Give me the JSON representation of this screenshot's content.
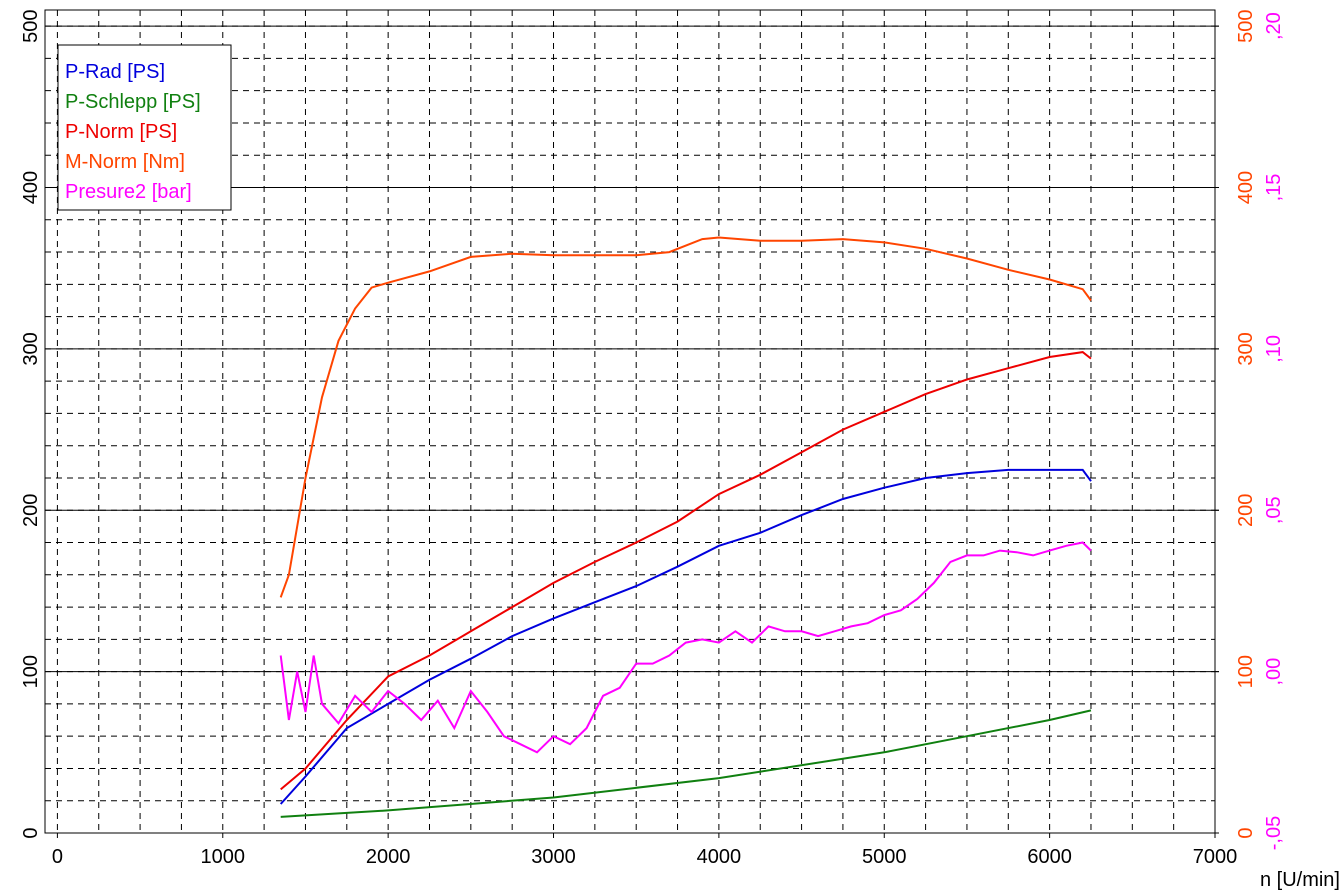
{
  "chart_data": {
    "type": "line",
    "xlabel": "n [U/min]",
    "xlim": [
      -75,
      7000
    ],
    "xticks": [
      0,
      1000,
      2000,
      3000,
      4000,
      5000,
      6000,
      7000
    ],
    "x_minor_step": 250,
    "ylim": [
      0,
      510
    ],
    "yticks": [
      0,
      100,
      200,
      300,
      400,
      500
    ],
    "y_minor_step": 20,
    "y2lim": [
      0,
      510
    ],
    "y2ticks": [
      0,
      100,
      200,
      300,
      400,
      500
    ],
    "y2color": "#ff4500",
    "y3lim": [
      -0.05,
      0.205
    ],
    "y3ticks": [
      {
        "value": -0.05,
        "label": "-,05"
      },
      {
        "value": 0,
        "label": ",00"
      },
      {
        "value": 0.05,
        "label": ",05"
      },
      {
        "value": 0.1,
        "label": ",10"
      },
      {
        "value": 0.15,
        "label": ",15"
      },
      {
        "value": 0.2,
        "label": ",20"
      }
    ],
    "y3color": "#ff00ff",
    "grid": true,
    "legend": "upper left",
    "series": [
      {
        "name": "P-Rad [PS]",
        "color": "#0000dd",
        "x": [
          1350,
          1500,
          1750,
          2000,
          2250,
          2500,
          2750,
          3000,
          3250,
          3500,
          3750,
          4000,
          4250,
          4500,
          4750,
          5000,
          5250,
          5500,
          5750,
          6000,
          6200,
          6250
        ],
        "values": [
          18,
          35,
          65,
          80,
          95,
          108,
          122,
          133,
          143,
          153,
          165,
          178,
          186,
          197,
          207,
          214,
          220,
          223,
          225,
          225,
          225,
          218
        ]
      },
      {
        "name": "P-Schlepp [PS]",
        "color": "#108010",
        "x": [
          1350,
          2000,
          3000,
          4000,
          5000,
          5500,
          6000,
          6250
        ],
        "values": [
          10,
          14,
          22,
          34,
          50,
          60,
          70,
          76
        ]
      },
      {
        "name": "P-Norm [PS]",
        "color": "#ee0000",
        "x": [
          1350,
          1500,
          1750,
          2000,
          2250,
          2500,
          2750,
          3000,
          3250,
          3500,
          3750,
          4000,
          4250,
          4500,
          4750,
          5000,
          5250,
          5500,
          5750,
          6000,
          6200,
          6250
        ],
        "values": [
          27,
          40,
          70,
          97,
          110,
          125,
          140,
          155,
          168,
          180,
          193,
          210,
          222,
          236,
          250,
          261,
          272,
          281,
          288,
          295,
          298,
          294
        ]
      },
      {
        "name": "M-Norm [Nm]",
        "color": "#ff4500",
        "axis": "y2",
        "x": [
          1350,
          1400,
          1500,
          1600,
          1700,
          1800,
          1900,
          2000,
          2250,
          2500,
          2750,
          3000,
          3250,
          3500,
          3700,
          3900,
          4000,
          4250,
          4500,
          4750,
          5000,
          5250,
          5500,
          5750,
          6000,
          6200,
          6250
        ],
        "values": [
          146,
          160,
          220,
          270,
          305,
          325,
          338,
          341,
          348,
          357,
          359,
          358,
          358,
          358,
          360,
          368,
          369,
          367,
          367,
          368,
          366,
          362,
          356,
          349,
          343,
          337,
          330
        ]
      },
      {
        "name": "Presure2 [bar]",
        "color": "#ff00ff",
        "axis": "y3",
        "x": [
          1350,
          1400,
          1450,
          1500,
          1550,
          1600,
          1700,
          1800,
          1900,
          2000,
          2100,
          2200,
          2300,
          2400,
          2500,
          2600,
          2700,
          2800,
          2900,
          3000,
          3100,
          3200,
          3300,
          3400,
          3500,
          3600,
          3700,
          3800,
          3900,
          4000,
          4100,
          4200,
          4300,
          4400,
          4500,
          4600,
          4700,
          4800,
          4900,
          5000,
          5100,
          5200,
          5300,
          5400,
          5500,
          5600,
          5700,
          5800,
          5900,
          6000,
          6100,
          6200,
          6250
        ],
        "values": [
          0.005,
          -0.015,
          0,
          -0.0125,
          0.005,
          -0.01,
          -0.016,
          -0.0075,
          -0.0125,
          -0.006,
          -0.01,
          -0.015,
          -0.009,
          -0.0175,
          -0.006,
          -0.0125,
          -0.02,
          -0.0225,
          -0.025,
          -0.02,
          -0.0225,
          -0.0175,
          -0.0075,
          -0.005,
          0.0025,
          0.0025,
          0.005,
          0.009,
          0.01,
          0.009,
          0.0125,
          0.009,
          0.014,
          0.0125,
          0.0125,
          0.011,
          0.0125,
          0.014,
          0.015,
          0.0175,
          0.019,
          0.0225,
          0.0275,
          0.034,
          0.036,
          0.036,
          0.0375,
          0.037,
          0.036,
          0.0375,
          0.039,
          0.04,
          0.0375
        ]
      }
    ]
  }
}
